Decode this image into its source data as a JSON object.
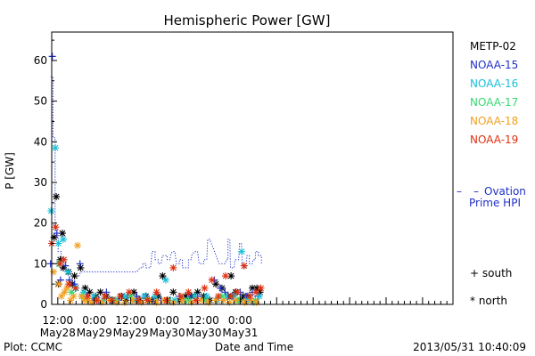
{
  "chart_data": {
    "type": "scatter",
    "title": "Hemispheric Power [GW]",
    "xlabel": "Date and Time",
    "ylabel": "P [GW]",
    "xlim": [
      10,
      142
    ],
    "ylim": [
      0,
      67
    ],
    "yticks": [
      0,
      10,
      20,
      30,
      40,
      50,
      60
    ],
    "xticks": [
      {
        "x": 12,
        "time": "12:00",
        "date": "May28"
      },
      {
        "x": 24,
        "time": "0:00",
        "date": "May29"
      },
      {
        "x": 36,
        "time": "12:00",
        "date": "May29"
      },
      {
        "x": 48,
        "time": "0:00",
        "date": "May30"
      },
      {
        "x": 60,
        "time": "12:00",
        "date": "May30"
      },
      {
        "x": 72,
        "time": "0:00",
        "date": "May31"
      }
    ],
    "x_unit": "hours since May28 0:00",
    "legend_position": "right",
    "grid": false,
    "legend": [
      {
        "name": "METP-02",
        "color": "#000000"
      },
      {
        "name": "NOAA-15",
        "color": "#1f2fc8"
      },
      {
        "name": "NOAA-16",
        "color": "#19c0d8"
      },
      {
        "name": "NOAA-17",
        "color": "#38d870"
      },
      {
        "name": "NOAA-18",
        "color": "#f0a020"
      },
      {
        "name": "NOAA-19",
        "color": "#e03010"
      }
    ],
    "ovation": {
      "label_line1": "Ovation",
      "label_line2": "Prime HPI",
      "color": "#1f2fc8",
      "points": [
        [
          9.7,
          56
        ],
        [
          10.4,
          56
        ],
        [
          10.4,
          41
        ],
        [
          11.1,
          41
        ],
        [
          11.1,
          17
        ],
        [
          12.1,
          17
        ],
        [
          12.1,
          13
        ],
        [
          13.1,
          13
        ],
        [
          13.1,
          11
        ],
        [
          14.7,
          11
        ],
        [
          14.7,
          8
        ],
        [
          16.1,
          8
        ],
        [
          16.1,
          7
        ],
        [
          19,
          7
        ],
        [
          19.5,
          8
        ],
        [
          24,
          8
        ],
        [
          26,
          8
        ],
        [
          30,
          8
        ],
        [
          38,
          8
        ],
        [
          39,
          9
        ],
        [
          40,
          9
        ],
        [
          40,
          10
        ],
        [
          41,
          10
        ],
        [
          41,
          9
        ],
        [
          42.5,
          9
        ],
        [
          43,
          13
        ],
        [
          44,
          13
        ],
        [
          44,
          11
        ],
        [
          45,
          11
        ],
        [
          45,
          10
        ],
        [
          46,
          10
        ],
        [
          46.4,
          12
        ],
        [
          48,
          12
        ],
        [
          48,
          11
        ],
        [
          49,
          11
        ],
        [
          49,
          12
        ],
        [
          49.7,
          13
        ],
        [
          50.5,
          13
        ],
        [
          51,
          10
        ],
        [
          52,
          10
        ],
        [
          52,
          11
        ],
        [
          53,
          11
        ],
        [
          53,
          9
        ],
        [
          55,
          9
        ],
        [
          55,
          11
        ],
        [
          56,
          11
        ],
        [
          56,
          12
        ],
        [
          57,
          13
        ],
        [
          58,
          13
        ],
        [
          58.5,
          10
        ],
        [
          60,
          10
        ],
        [
          60,
          11
        ],
        [
          61,
          11
        ],
        [
          61.3,
          16
        ],
        [
          62,
          16
        ],
        [
          65.1,
          10
        ],
        [
          67,
          10
        ],
        [
          67.5,
          11
        ],
        [
          68,
          11
        ],
        [
          68,
          16
        ],
        [
          68.6,
          16
        ],
        [
          68.8,
          9
        ],
        [
          70,
          9
        ],
        [
          70.3,
          11
        ],
        [
          71.5,
          11
        ],
        [
          71.8,
          15
        ],
        [
          72.4,
          15
        ],
        [
          72.8,
          9
        ],
        [
          74,
          9
        ],
        [
          74.2,
          12
        ],
        [
          75,
          12
        ],
        [
          75,
          10
        ],
        [
          76,
          10
        ],
        [
          76.2,
          11
        ],
        [
          77,
          11
        ],
        [
          77,
          13
        ],
        [
          78,
          13
        ],
        [
          78,
          12
        ],
        [
          79,
          12
        ],
        [
          79,
          10
        ]
      ]
    },
    "series": [
      {
        "name": "METP-02",
        "marker": "star",
        "color": "#000000",
        "points": [
          [
            11.5,
            26.5
          ],
          [
            10.8,
            16.5
          ],
          [
            13.5,
            17.5
          ],
          [
            12.8,
            11
          ],
          [
            12.2,
            5
          ],
          [
            13.8,
            9
          ],
          [
            15.5,
            8
          ],
          [
            19.5,
            9
          ],
          [
            16.8,
            5
          ],
          [
            17.5,
            7
          ],
          [
            21,
            4
          ],
          [
            22.5,
            3
          ],
          [
            24.5,
            2
          ],
          [
            26,
            3
          ],
          [
            28,
            2
          ],
          [
            30,
            1
          ],
          [
            33,
            2
          ],
          [
            34.5,
            1
          ],
          [
            37,
            3
          ],
          [
            39,
            1
          ],
          [
            41,
            2
          ],
          [
            43,
            1
          ],
          [
            45,
            2
          ],
          [
            46.5,
            7
          ],
          [
            48,
            1
          ],
          [
            50,
            3
          ],
          [
            52,
            1
          ],
          [
            54,
            2
          ],
          [
            56,
            2
          ],
          [
            58,
            3
          ],
          [
            60,
            2
          ],
          [
            62,
            1
          ],
          [
            64,
            5
          ],
          [
            66,
            4
          ],
          [
            68,
            2
          ],
          [
            69,
            7
          ],
          [
            70.5,
            3
          ],
          [
            72,
            1
          ],
          [
            73,
            2
          ],
          [
            74.5,
            2
          ],
          [
            76,
            4
          ],
          [
            77.5,
            4
          ],
          [
            78.5,
            3
          ]
        ]
      },
      {
        "name": "NOAA-15",
        "marker": "plus",
        "color": "#1f2fc8",
        "points": [
          [
            10.2,
            61
          ],
          [
            11.7,
            17.5
          ],
          [
            9.6,
            10
          ],
          [
            12.9,
            6
          ],
          [
            14.5,
            9.5
          ],
          [
            15.8,
            6
          ],
          [
            17.5,
            5
          ],
          [
            19.3,
            10
          ],
          [
            21.5,
            2
          ],
          [
            23.5,
            1
          ],
          [
            25.5,
            1
          ],
          [
            28,
            3
          ],
          [
            29.5,
            1
          ],
          [
            32,
            1
          ],
          [
            35,
            2
          ],
          [
            38,
            2
          ],
          [
            41,
            2
          ],
          [
            43.5,
            1
          ],
          [
            46,
            1
          ],
          [
            49,
            1
          ],
          [
            52,
            2
          ],
          [
            55.5,
            2
          ],
          [
            58,
            2
          ],
          [
            61,
            1
          ],
          [
            63.5,
            6
          ],
          [
            65.5,
            4
          ],
          [
            67,
            3
          ],
          [
            69.5,
            2
          ],
          [
            72,
            3
          ],
          [
            74,
            2
          ],
          [
            76,
            3
          ],
          [
            77.8,
            2
          ]
        ]
      },
      {
        "name": "NOAA-16",
        "marker": "star",
        "color": "#19c0d8",
        "points": [
          [
            11.2,
            38.5
          ],
          [
            9.8,
            23
          ],
          [
            12.2,
            15
          ],
          [
            13.8,
            16
          ],
          [
            15.3,
            8
          ],
          [
            18,
            4
          ],
          [
            20.5,
            3
          ],
          [
            23.8,
            2
          ],
          [
            27,
            1
          ],
          [
            31,
            1
          ],
          [
            34,
            2
          ],
          [
            37.5,
            1
          ],
          [
            40.5,
            2
          ],
          [
            44,
            2
          ],
          [
            47.5,
            6
          ],
          [
            50.5,
            1
          ],
          [
            53.5,
            1
          ],
          [
            57,
            2
          ],
          [
            61,
            2
          ],
          [
            64.5,
            1
          ],
          [
            67.5,
            2
          ],
          [
            70,
            2
          ],
          [
            72.5,
            13
          ],
          [
            74.5,
            1
          ],
          [
            76.5,
            0.5
          ],
          [
            78.3,
            2
          ]
        ]
      },
      {
        "name": "NOAA-17",
        "marker": "star",
        "color": "#38d870",
        "points": [
          [
            12.4,
            10
          ],
          [
            16.5,
            3
          ],
          [
            20,
            2
          ],
          [
            25,
            1
          ],
          [
            30.5,
            1
          ],
          [
            36,
            2
          ],
          [
            42,
            1
          ],
          [
            48.5,
            1
          ],
          [
            55,
            1
          ],
          [
            60.5,
            1
          ],
          [
            66,
            2
          ],
          [
            71.5,
            1
          ],
          [
            77,
            1
          ]
        ]
      },
      {
        "name": "NOAA-18",
        "marker": "star",
        "color": "#f0a020",
        "points": [
          [
            10.6,
            8
          ],
          [
            12.4,
            5
          ],
          [
            13.2,
            2
          ],
          [
            14.2,
            3
          ],
          [
            15,
            4
          ],
          [
            16.2,
            1
          ],
          [
            17.2,
            2
          ],
          [
            18.5,
            14.5
          ],
          [
            19.8,
            2
          ],
          [
            20.8,
            1
          ],
          [
            22,
            1
          ],
          [
            23.2,
            0.5
          ],
          [
            25,
            1
          ],
          [
            26.5,
            0.5
          ],
          [
            29,
            1
          ],
          [
            31.5,
            0.5
          ],
          [
            34,
            0.5
          ],
          [
            36.5,
            1
          ],
          [
            39.5,
            0.5
          ],
          [
            42,
            1
          ],
          [
            44.5,
            0.5
          ],
          [
            47,
            1
          ],
          [
            50,
            0.5
          ],
          [
            53,
            1
          ],
          [
            56,
            0.5
          ],
          [
            59,
            1
          ],
          [
            61.5,
            0.5
          ],
          [
            64,
            1
          ],
          [
            66.5,
            1
          ],
          [
            68.5,
            0.5
          ],
          [
            70.5,
            1
          ],
          [
            73.5,
            0.5
          ],
          [
            75.5,
            1
          ],
          [
            77.3,
            0.5
          ]
        ]
      },
      {
        "name": "NOAA-19",
        "marker": "star",
        "color": "#e03010",
        "points": [
          [
            10,
            15
          ],
          [
            11.3,
            19
          ],
          [
            12.7,
            10
          ],
          [
            14,
            11
          ],
          [
            15.6,
            5
          ],
          [
            17.8,
            4
          ],
          [
            21.8,
            2
          ],
          [
            24.8,
            1
          ],
          [
            27.5,
            2
          ],
          [
            29.8,
            1
          ],
          [
            32.5,
            2
          ],
          [
            35.5,
            3
          ],
          [
            38.5,
            1
          ],
          [
            41.5,
            1
          ],
          [
            44.5,
            3
          ],
          [
            47.8,
            1
          ],
          [
            50,
            9
          ],
          [
            52.5,
            2
          ],
          [
            55,
            3
          ],
          [
            57.5,
            1
          ],
          [
            60.3,
            4
          ],
          [
            62.7,
            6
          ],
          [
            64.8,
            2
          ],
          [
            67.2,
            7
          ],
          [
            69,
            2
          ],
          [
            71,
            3
          ],
          [
            73.3,
            9.5
          ],
          [
            75.2,
            2
          ],
          [
            77.2,
            3
          ],
          [
            78.8,
            4
          ]
        ]
      }
    ],
    "footer": {
      "left": "Plot: CCMC",
      "right": "2013/05/31 10:40:09"
    },
    "annotations": {
      "south": "+ south",
      "north": "* north"
    }
  }
}
